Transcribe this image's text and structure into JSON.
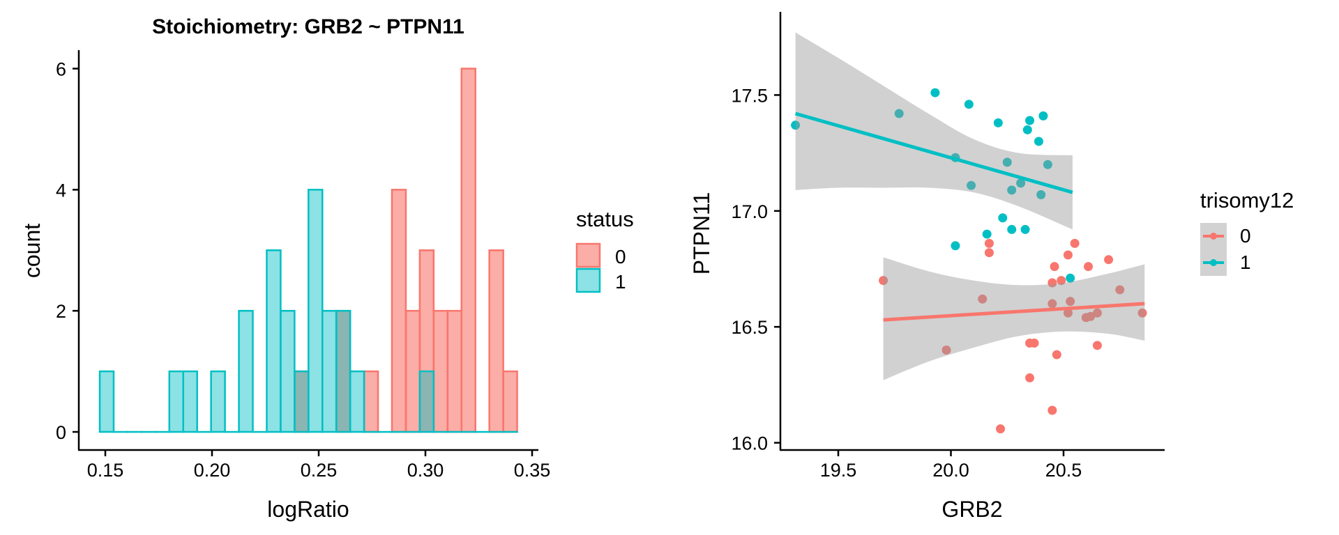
{
  "chart_data": [
    {
      "type": "bar",
      "subtype": "histogram",
      "title": "Stoichiometry: GRB2 ~ PTPN11",
      "xlabel": "logRatio",
      "ylabel": "count",
      "xlim": [
        0.138,
        0.352
      ],
      "ylim": [
        -0.3,
        6.3
      ],
      "xticks": [
        0.15,
        0.2,
        0.25,
        0.3,
        0.35
      ],
      "xtick_labels": [
        "0.15",
        "0.20",
        "0.25",
        "0.30",
        "0.35"
      ],
      "yticks": [
        0,
        2,
        4,
        6
      ],
      "ytick_labels": [
        "0",
        "2",
        "4",
        "6"
      ],
      "bin_start": 0.1474,
      "bin_width": 0.00652,
      "grid": false,
      "legend": {
        "title": "status",
        "position": "right",
        "entries": [
          "0",
          "1"
        ]
      },
      "series": [
        {
          "name": "0",
          "fill": "#F8766D",
          "values": [
            0,
            0,
            0,
            0,
            0,
            0,
            0,
            0,
            0,
            0,
            0,
            0,
            0,
            0,
            1,
            0,
            0,
            2,
            0,
            1,
            0,
            4,
            2,
            3,
            2,
            2,
            6,
            0,
            3,
            1
          ]
        },
        {
          "name": "1",
          "fill": "#00BFC4",
          "values": [
            1,
            0,
            0,
            0,
            0,
            1,
            1,
            0,
            1,
            0,
            2,
            0,
            3,
            2,
            1,
            4,
            2,
            2,
            1,
            0,
            0,
            0,
            0,
            1,
            0,
            0,
            0,
            0,
            0,
            0
          ]
        }
      ]
    },
    {
      "type": "scatter",
      "xlabel": "GRB2",
      "ylabel": "PTPN11",
      "xlim": [
        19.25,
        20.92
      ],
      "ylim": [
        15.97,
        17.86
      ],
      "xticks": [
        19.5,
        20.0,
        20.5
      ],
      "xtick_labels": [
        "19.5",
        "20.0",
        "20.5"
      ],
      "yticks": [
        16.0,
        16.5,
        17.0,
        17.5
      ],
      "ytick_labels": [
        "16.0",
        "16.5",
        "17.0",
        "17.5"
      ],
      "grid": false,
      "legend": {
        "title": "trisomy12",
        "position": "right",
        "entries": [
          "0",
          "1"
        ]
      },
      "series": [
        {
          "name": "0",
          "color": "#F8766D",
          "points": [
            [
              20.17,
              16.86
            ],
            [
              20.17,
              16.82
            ],
            [
              20.55,
              16.86
            ],
            [
              20.52,
              16.81
            ],
            [
              20.46,
              16.76
            ],
            [
              20.61,
              16.76
            ],
            [
              20.7,
              16.79
            ],
            [
              19.7,
              16.7
            ],
            [
              20.45,
              16.69
            ],
            [
              20.49,
              16.7
            ],
            [
              20.14,
              16.62
            ],
            [
              20.75,
              16.66
            ],
            [
              20.45,
              16.6
            ],
            [
              20.53,
              16.61
            ],
            [
              20.52,
              16.56
            ],
            [
              20.6,
              16.54
            ],
            [
              20.62,
              16.545
            ],
            [
              20.65,
              16.56
            ],
            [
              20.85,
              16.56
            ],
            [
              19.98,
              16.4
            ],
            [
              20.35,
              16.43
            ],
            [
              20.37,
              16.43
            ],
            [
              20.47,
              16.38
            ],
            [
              20.65,
              16.42
            ],
            [
              20.35,
              16.28
            ],
            [
              20.45,
              16.14
            ],
            [
              20.22,
              16.06
            ]
          ],
          "fit": {
            "x": [
              19.7,
              20.86
            ],
            "y": [
              16.53,
              16.6
            ]
          },
          "band": {
            "x": [
              19.7,
              19.9,
              20.1,
              20.3,
              20.5,
              20.7,
              20.86
            ],
            "upper": [
              16.8,
              16.74,
              16.7,
              16.68,
              16.69,
              16.73,
              16.77
            ],
            "lower": [
              16.27,
              16.35,
              16.41,
              16.46,
              16.48,
              16.47,
              16.44
            ]
          }
        },
        {
          "name": "1",
          "color": "#00BFC4",
          "points": [
            [
              19.31,
              17.37
            ],
            [
              19.93,
              17.51
            ],
            [
              19.77,
              17.42
            ],
            [
              20.08,
              17.46
            ],
            [
              20.21,
              17.38
            ],
            [
              20.35,
              17.39
            ],
            [
              20.34,
              17.35
            ],
            [
              20.41,
              17.41
            ],
            [
              20.39,
              17.3
            ],
            [
              20.02,
              17.23
            ],
            [
              20.25,
              17.21
            ],
            [
              20.43,
              17.2
            ],
            [
              20.09,
              17.11
            ],
            [
              20.31,
              17.12
            ],
            [
              20.27,
              17.09
            ],
            [
              20.4,
              17.07
            ],
            [
              20.23,
              16.97
            ],
            [
              20.27,
              16.92
            ],
            [
              20.33,
              16.92
            ],
            [
              20.16,
              16.9
            ],
            [
              20.02,
              16.85
            ],
            [
              20.53,
              16.71
            ]
          ],
          "fit": {
            "x": [
              19.31,
              20.54
            ],
            "y": [
              17.42,
              17.08
            ]
          },
          "band": {
            "x": [
              19.31,
              19.5,
              19.7,
              19.9,
              20.1,
              20.3,
              20.54
            ],
            "upper": [
              17.77,
              17.66,
              17.54,
              17.42,
              17.31,
              17.25,
              17.24
            ],
            "lower": [
              17.09,
              17.1,
              17.1,
              17.1,
              17.08,
              17.02,
              16.92
            ]
          }
        }
      ]
    }
  ]
}
